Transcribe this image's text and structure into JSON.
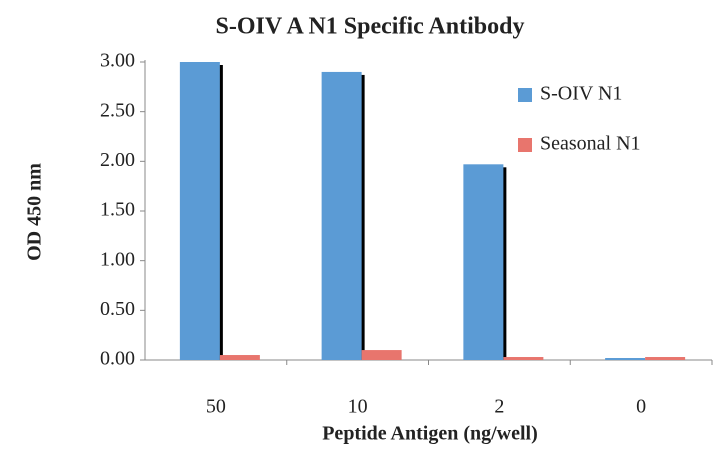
{
  "chart_data": {
    "type": "bar",
    "title": "S-OIV A N1 Specific Antibody",
    "x_label": "Peptide Antigen (ng/well)",
    "y_label": "OD 450 nm",
    "categories": [
      "50",
      "10",
      "2",
      "0"
    ],
    "series": [
      {
        "name": "S-OIV N1",
        "color": "#5b9bd5",
        "values": [
          3.0,
          2.9,
          1.97,
          0.02
        ]
      },
      {
        "name": "Seasonal N1",
        "color": "#e8756d",
        "values": [
          0.05,
          0.1,
          0.03,
          0.03
        ]
      }
    ],
    "ylim": [
      0,
      3
    ],
    "yticks": [
      {
        "value": 0,
        "label": "0.00"
      },
      {
        "value": 0.5,
        "label": "0.50"
      },
      {
        "value": 1,
        "label": "1.00"
      },
      {
        "value": 1.5,
        "label": "1.50"
      },
      {
        "value": 2,
        "label": "2.00"
      },
      {
        "value": 2.5,
        "label": "2.50"
      },
      {
        "value": 3,
        "label": "3.00"
      }
    ],
    "grid": false,
    "legend": "upper right"
  }
}
